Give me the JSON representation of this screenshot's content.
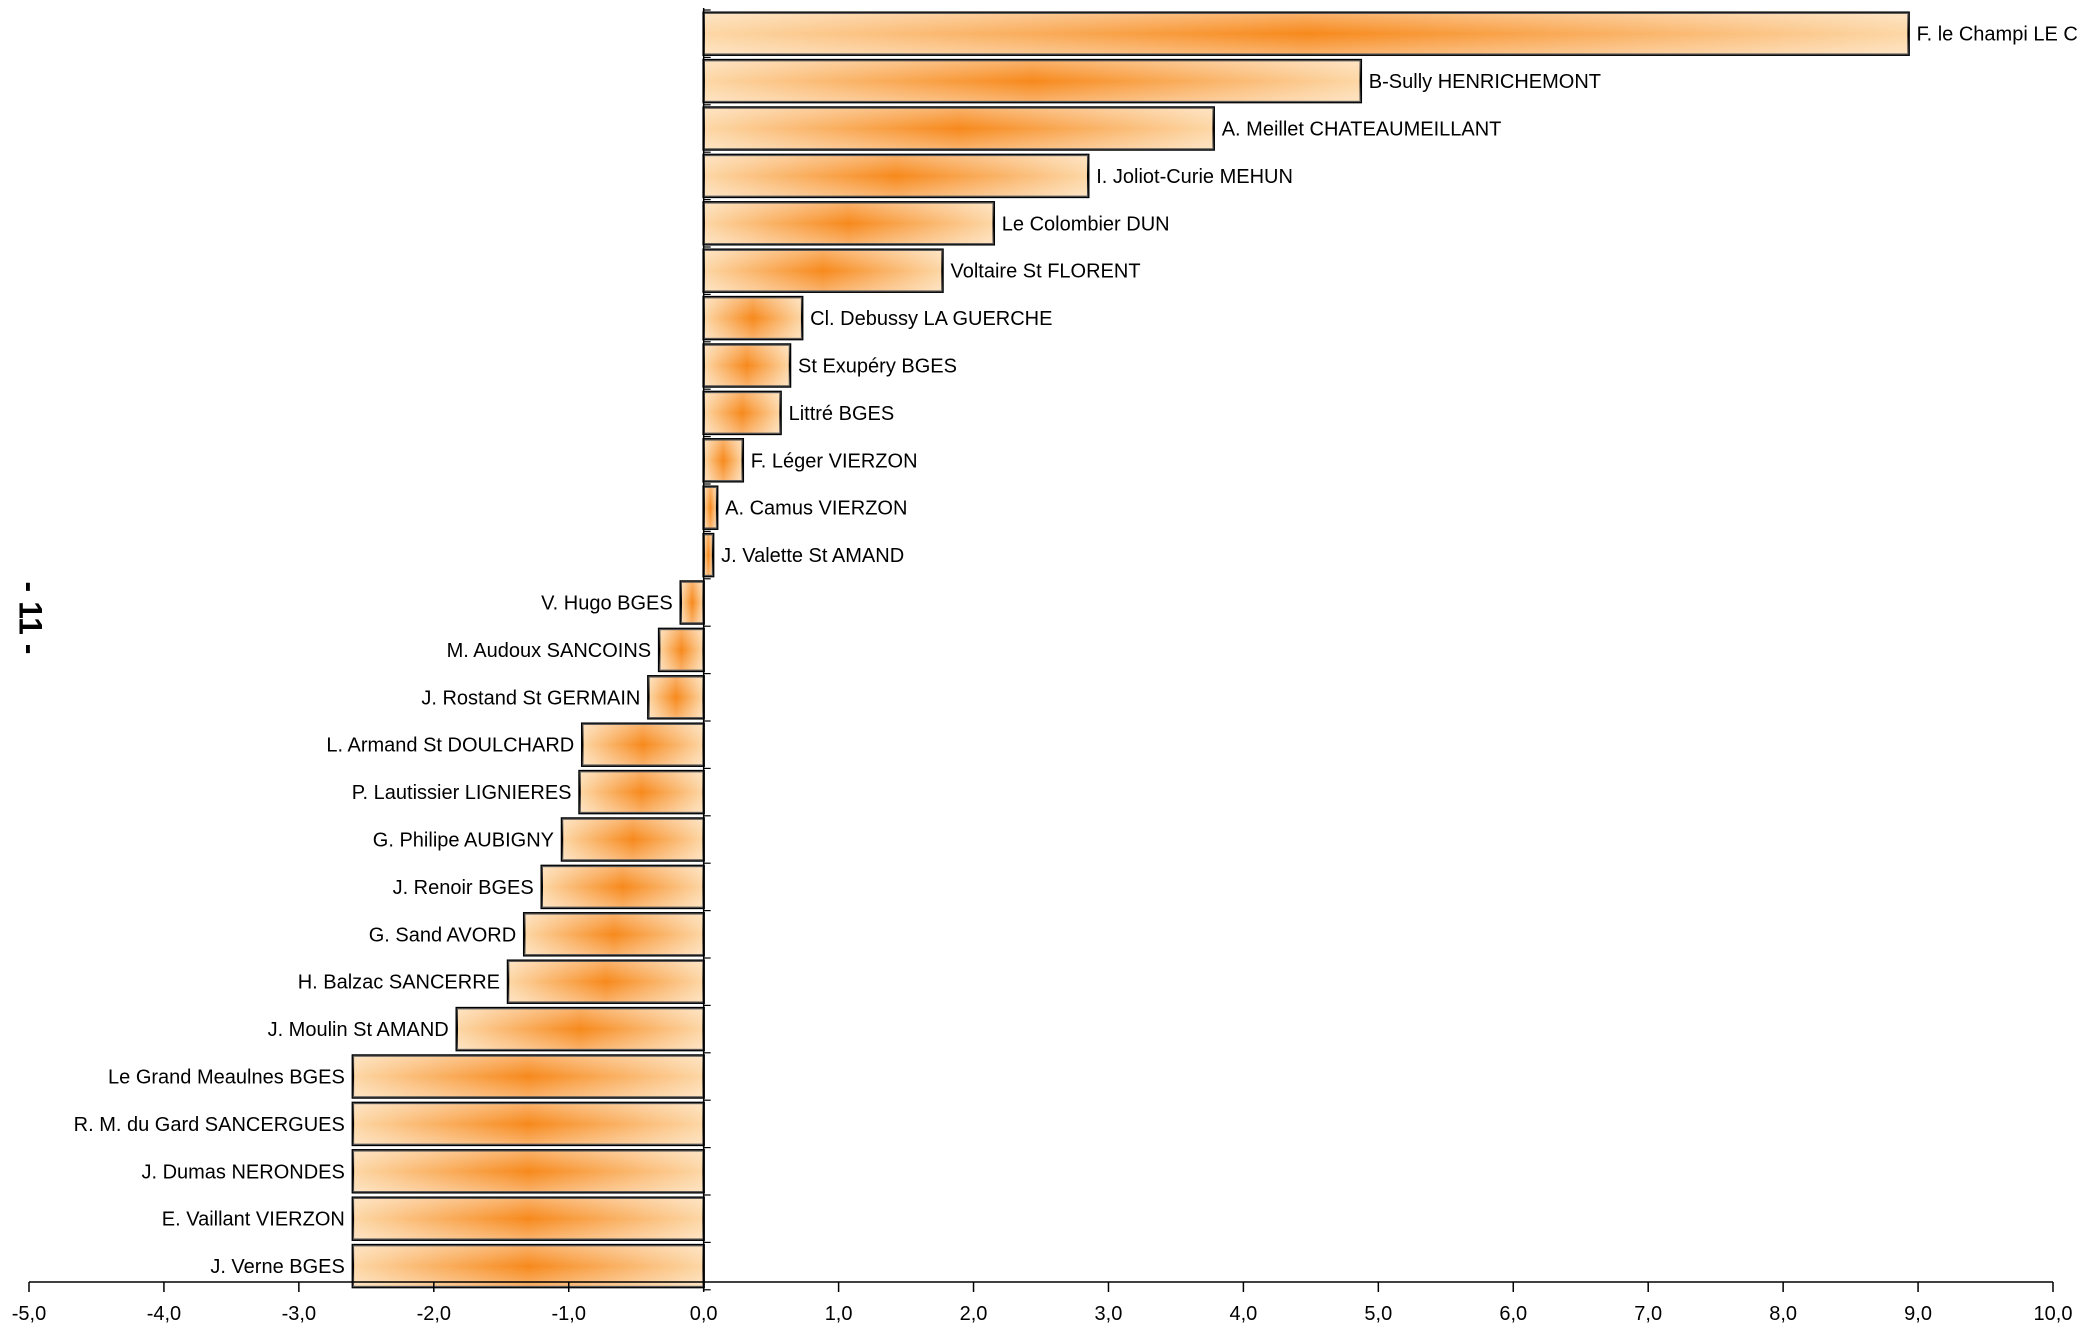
{
  "page_number": "- 11 -",
  "chart_data": {
    "type": "bar",
    "orientation": "horizontal",
    "title": "",
    "xlabel": "",
    "ylabel": "",
    "xlim": [
      -5,
      10
    ],
    "x_ticks": [
      "-5,0",
      "-4,0",
      "-3,0",
      "-2,0",
      "-1,0",
      "0,0",
      "1,0",
      "2,0",
      "3,0",
      "4,0",
      "5,0",
      "6,0",
      "7,0",
      "8,0",
      "9,0",
      "10,0"
    ],
    "grid": false,
    "colors": {
      "bar_edge": "#fdd7a6",
      "bar_center": "#f7891c",
      "bar_stroke": "#000000"
    },
    "categories": [
      "F. le Champi LE CHATELET",
      "B-Sully HENRICHEMONT",
      "A. Meillet CHATEAUMEILLANT",
      "I. Joliot-Curie MEHUN",
      "Le Colombier DUN",
      "Voltaire St FLORENT",
      "Cl. Debussy LA GUERCHE",
      "St Exupéry BGES",
      "Littré BGES",
      "F. Léger VIERZON",
      "A. Camus VIERZON",
      "J. Valette St AMAND",
      "V. Hugo BGES",
      "M. Audoux SANCOINS",
      "J. Rostand St GERMAIN",
      "L. Armand St DOULCHARD",
      "P. Lautissier LIGNIERES",
      "G. Philipe AUBIGNY",
      "J. Renoir BGES",
      "G. Sand AVORD",
      "H. Balzac SANCERRE",
      "J. Moulin St AMAND",
      "Le Grand Meaulnes BGES",
      "R. M. du Gard  SANCERGUES",
      "J. Dumas NERONDES",
      "E. Vaillant VIERZON",
      "J. Verne BGES"
    ],
    "values": [
      8.93,
      4.87,
      3.78,
      2.85,
      2.15,
      1.77,
      0.73,
      0.64,
      0.57,
      0.29,
      0.1,
      0.07,
      -0.17,
      -0.33,
      -0.41,
      -0.9,
      -0.92,
      -1.05,
      -1.2,
      -1.33,
      -1.45,
      -1.83,
      -2.6,
      -2.6,
      -2.6,
      -2.6,
      -2.6
    ]
  }
}
